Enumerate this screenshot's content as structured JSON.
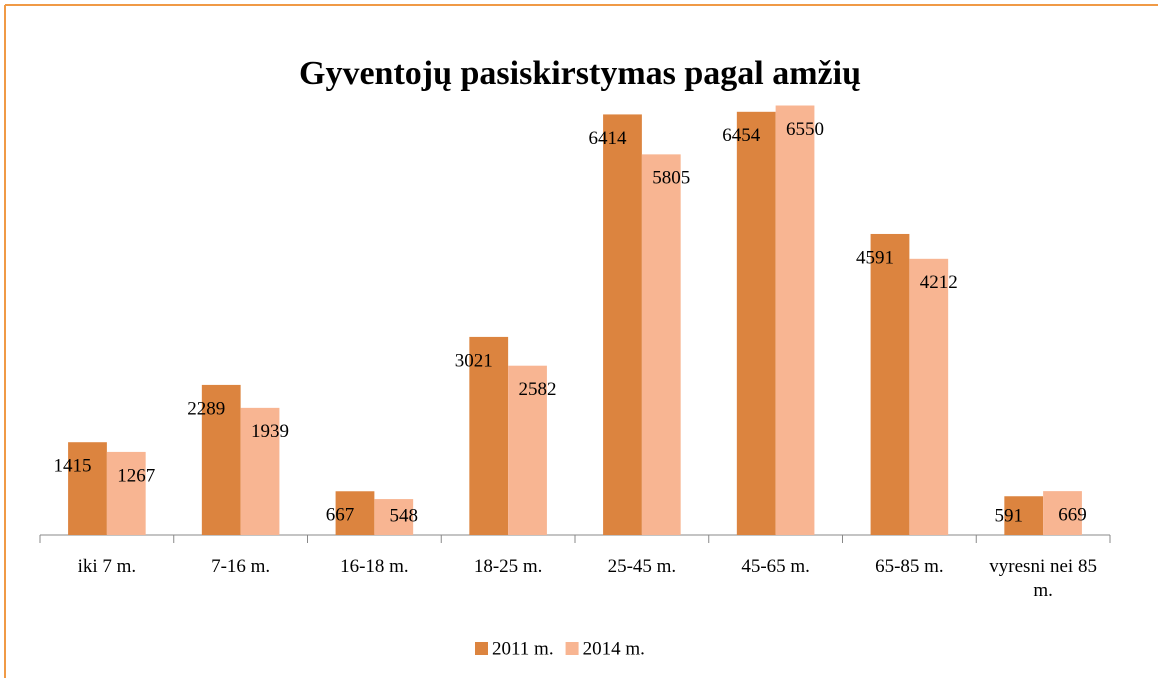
{
  "chart_data": {
    "type": "bar",
    "title": "Gyventojų pasiskirstymas pagal amžių",
    "categories": [
      "iki 7 m.",
      "7-16 m.",
      "16-18 m.",
      "18-25 m.",
      "25-45 m.",
      "45-65 m.",
      "65-85 m.",
      "vyresni nei 85 m."
    ],
    "series": [
      {
        "name": "2011 m.",
        "color": "#dc843f",
        "values": [
          1415,
          2289,
          667,
          3021,
          6414,
          6454,
          4591,
          591
        ]
      },
      {
        "name": "2014 m.",
        "color": "#f8b592",
        "values": [
          1267,
          1939,
          548,
          2582,
          5805,
          6550,
          4212,
          669
        ]
      }
    ],
    "ylim": [
      0,
      7000
    ],
    "legend": "bottom"
  }
}
